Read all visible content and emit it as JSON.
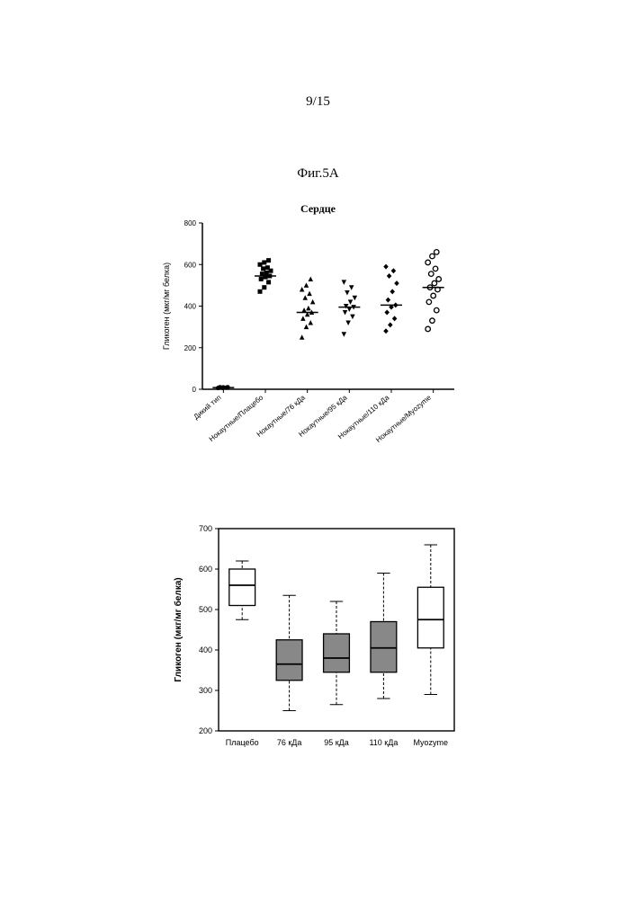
{
  "page_number": "9/15",
  "figure_label": "Фиг.5A",
  "scatter_chart": {
    "type": "scatter",
    "title": "Сердце",
    "ylabel": "Гликоген (мкг/мг белка)",
    "ylim": [
      0,
      800
    ],
    "yticks": [
      0,
      200,
      400,
      600,
      800
    ],
    "label_fontsize": 9,
    "tick_fontsize": 8,
    "axis_color": "#000000",
    "background_color": "#ffffff",
    "categories": [
      "Дикий тип",
      "Нокаутные/Плацебо",
      "Нокаутные/76 кДа",
      "Нокаутные/95 кДа",
      "Нокаутные/110 кДа",
      "Нокаутные/Myozyme"
    ],
    "markers": [
      "dot",
      "square",
      "triangle",
      "triangle-down",
      "diamond",
      "circle-open"
    ],
    "marker_color": "#000000",
    "marker_size": 5,
    "median_line_color": "#000000",
    "series": [
      {
        "median": 8,
        "points": [
          6,
          7,
          8,
          8,
          9,
          10,
          10
        ]
      },
      {
        "median": 545,
        "points": [
          470,
          490,
          515,
          530,
          540,
          545,
          555,
          560,
          570,
          580,
          585,
          600,
          610,
          620
        ]
      },
      {
        "median": 370,
        "points": [
          250,
          300,
          320,
          340,
          360,
          370,
          380,
          390,
          420,
          440,
          460,
          480,
          500,
          530
        ]
      },
      {
        "median": 395,
        "points": [
          265,
          320,
          350,
          370,
          385,
          395,
          400,
          420,
          440,
          465,
          490,
          515
        ]
      },
      {
        "median": 405,
        "points": [
          280,
          310,
          340,
          370,
          395,
          405,
          430,
          470,
          510,
          545,
          570,
          590
        ]
      },
      {
        "median": 490,
        "points": [
          290,
          330,
          380,
          420,
          450,
          480,
          490,
          510,
          530,
          555,
          580,
          610,
          640,
          660
        ]
      }
    ]
  },
  "box_chart": {
    "type": "boxplot",
    "ylabel": "Гликоген (мкг/мг белка)",
    "ylim": [
      200,
      700
    ],
    "yticks": [
      200,
      300,
      400,
      500,
      600,
      700
    ],
    "label_fontsize": 10,
    "tick_fontsize": 9,
    "axis_color": "#000000",
    "background_color": "#ffffff",
    "box_border_color": "#000000",
    "categories": [
      "Плацебо",
      "76 кДа",
      "95 кДа",
      "110 кДа",
      "Myozyme"
    ],
    "boxes": [
      {
        "min": 475,
        "q1": 510,
        "median": 560,
        "q3": 600,
        "max": 620,
        "fill": "#ffffff",
        "outliers": []
      },
      {
        "min": 250,
        "q1": 325,
        "median": 365,
        "q3": 425,
        "max": 535,
        "fill": "#888888",
        "outliers": []
      },
      {
        "min": 265,
        "q1": 345,
        "median": 380,
        "q3": 440,
        "max": 520,
        "fill": "#888888",
        "outliers": []
      },
      {
        "min": 280,
        "q1": 345,
        "median": 405,
        "q3": 470,
        "max": 590,
        "fill": "#888888",
        "outliers": []
      },
      {
        "min": 290,
        "q1": 405,
        "median": 475,
        "q3": 555,
        "max": 660,
        "fill": "#ffffff",
        "outliers": []
      }
    ],
    "box_width": 0.55
  }
}
